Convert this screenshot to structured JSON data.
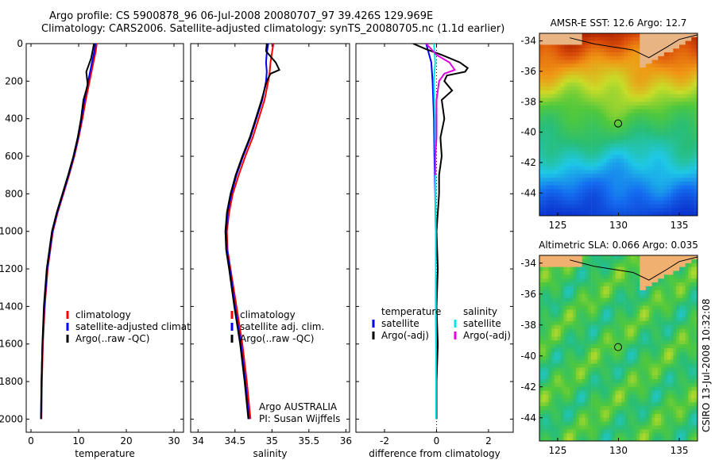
{
  "header": {
    "title_line1": "Argo profile: CS 5900878_96 06-Jul-2008 20080707_97 39.426S 129.969E",
    "title_line2": "Climatology: CARS2006. Satellite-adjusted climatology: synTS_20080705.nc (1.1d earlier)"
  },
  "side_label": "CSIRO 13-Jul-2008 10:32:08",
  "colors": {
    "red": "#ff0000",
    "blue": "#0000ff",
    "black": "#000000",
    "cyan": "#00e5e5",
    "magenta": "#e000e0"
  },
  "chart_data": [
    {
      "type": "line",
      "name": "temperature",
      "xlabel": "temperature",
      "ylabel": "",
      "xlim": [
        -1,
        32
      ],
      "ylim": [
        2070,
        0
      ],
      "xticks": [
        "0",
        "10",
        "20",
        "30"
      ],
      "xtick_values": [
        0,
        10,
        20,
        30
      ],
      "yticks": [
        "0",
        "200",
        "400",
        "600",
        "800",
        "1000",
        "1200",
        "1400",
        "1600",
        "1800",
        "2000"
      ],
      "ytick_values": [
        0,
        200,
        400,
        600,
        800,
        1000,
        1200,
        1400,
        1600,
        1800,
        2000
      ],
      "legend": [
        "climatology",
        "satellite-adjusted climatology",
        "Argo(..raw -QC)"
      ],
      "legend_colors": [
        "red",
        "blue",
        "black"
      ],
      "series": [
        {
          "name": "climatology",
          "color": "red",
          "depth": [
            0,
            40,
            100,
            200,
            300,
            400,
            500,
            600,
            700,
            800,
            900,
            1000,
            1200,
            1400,
            1600,
            1800,
            2000
          ],
          "values": [
            13.8,
            13.6,
            13.1,
            12.3,
            11.5,
            10.8,
            10.0,
            9.1,
            8.0,
            6.8,
            5.6,
            4.6,
            3.5,
            2.9,
            2.5,
            2.3,
            2.2
          ]
        },
        {
          "name": "satellite-adjusted climatology",
          "color": "blue",
          "depth": [
            0,
            40,
            100,
            200,
            300,
            400,
            500,
            600,
            700,
            800,
            900,
            1000,
            1200,
            1400,
            1600,
            1800,
            2000
          ],
          "values": [
            13.5,
            13.3,
            12.8,
            12.0,
            11.2,
            10.6,
            9.9,
            9.0,
            7.9,
            6.7,
            5.5,
            4.5,
            3.4,
            2.8,
            2.4,
            2.2,
            2.1
          ]
        },
        {
          "name": "Argo(..raw -QC)",
          "color": "black",
          "depth": [
            0,
            30,
            80,
            150,
            220,
            300,
            400,
            500,
            600,
            700,
            800,
            900,
            1000,
            1200,
            1400,
            1600,
            1800,
            2000
          ],
          "values": [
            13.2,
            13.0,
            12.6,
            11.6,
            11.9,
            11.0,
            10.5,
            9.8,
            8.9,
            7.8,
            6.6,
            5.4,
            4.4,
            3.3,
            2.7,
            2.4,
            2.2,
            2.1
          ]
        }
      ]
    },
    {
      "type": "line",
      "name": "salinity",
      "xlabel": "salinity",
      "ylabel": "",
      "xlim": [
        33.9,
        36.05
      ],
      "ylim": [
        2070,
        0
      ],
      "xticks": [
        "34",
        "34.5",
        "35",
        "35.5",
        "36"
      ],
      "xtick_values": [
        34,
        34.5,
        35,
        35.5,
        36
      ],
      "legend": [
        "climatology",
        "satellite adj. clim.",
        "Argo(..raw -QC)"
      ],
      "legend_colors": [
        "red",
        "blue",
        "black"
      ],
      "annotation": [
        "Argo AUSTRALIA",
        "PI: Susan Wijffels"
      ],
      "series": [
        {
          "name": "climatology",
          "color": "red",
          "depth": [
            0,
            50,
            100,
            150,
            200,
            300,
            400,
            500,
            600,
            700,
            800,
            900,
            1000,
            1100,
            1200,
            1400,
            1600,
            1800,
            2000
          ],
          "values": [
            35.02,
            35.0,
            34.98,
            34.97,
            34.95,
            34.9,
            34.82,
            34.74,
            34.64,
            34.55,
            34.47,
            34.42,
            34.39,
            34.4,
            34.44,
            34.52,
            34.6,
            34.66,
            34.71
          ]
        },
        {
          "name": "satellite adj. clim.",
          "color": "blue",
          "depth": [
            0,
            50,
            100,
            150,
            200,
            300,
            400,
            500,
            600,
            700,
            800,
            900,
            1000,
            1100,
            1200,
            1400,
            1600,
            1800,
            2000
          ],
          "values": [
            34.95,
            34.93,
            34.92,
            34.93,
            34.92,
            34.87,
            34.79,
            34.71,
            34.61,
            34.52,
            34.45,
            34.4,
            34.38,
            34.39,
            34.43,
            34.5,
            34.58,
            34.64,
            34.69
          ]
        },
        {
          "name": "Argo(..raw -QC)",
          "color": "black",
          "depth": [
            0,
            40,
            100,
            140,
            160,
            200,
            300,
            400,
            500,
            600,
            700,
            800,
            900,
            1000,
            1100,
            1200,
            1400,
            1600,
            1800,
            2000
          ],
          "values": [
            34.93,
            34.92,
            35.05,
            35.1,
            34.98,
            34.93,
            34.86,
            34.78,
            34.7,
            34.6,
            34.51,
            34.44,
            34.39,
            34.37,
            34.38,
            34.42,
            34.49,
            34.57,
            34.63,
            34.68
          ]
        }
      ]
    },
    {
      "type": "line",
      "name": "difference",
      "xlabel": "difference from climatology",
      "ylabel": "",
      "xlim": [
        -3.1,
        2.95
      ],
      "ylim": [
        2070,
        0
      ],
      "xticks": [
        "-2",
        "0",
        "2"
      ],
      "xtick_values": [
        -2,
        0,
        2
      ],
      "legend_headers": [
        "temperature",
        "salinity"
      ],
      "legend": [
        "satellite",
        "Argo(-adj)",
        "satellite",
        "Argo(-adj)"
      ],
      "legend_colors": [
        "blue",
        "black",
        "cyan",
        "magenta"
      ],
      "series": [
        {
          "name": "temperature satellite",
          "color": "blue",
          "depth": [
            0,
            100,
            200,
            400,
            600,
            800,
            1000,
            1200,
            1500,
            2000
          ],
          "values": [
            -0.4,
            -0.2,
            -0.15,
            -0.1,
            -0.08,
            -0.05,
            -0.03,
            -0.03,
            -0.02,
            0.0
          ]
        },
        {
          "name": "temperature Argo(-adj)",
          "color": "black",
          "depth": [
            0,
            30,
            60,
            100,
            130,
            150,
            170,
            200,
            250,
            300,
            400,
            500,
            600,
            700,
            800,
            900,
            1000,
            1200,
            1400,
            1600,
            1800,
            2000
          ],
          "values": [
            -0.9,
            -0.4,
            0.2,
            0.9,
            1.2,
            1.1,
            0.4,
            0.3,
            0.6,
            0.2,
            0.3,
            0.15,
            0.2,
            0.1,
            0.1,
            0.05,
            0.0,
            0.05,
            0.0,
            0.05,
            0.0,
            0.0
          ]
        },
        {
          "name": "salinity satellite",
          "color": "cyan",
          "depth": [
            0,
            100,
            200,
            400,
            600,
            800,
            1000,
            1200,
            1500,
            2000
          ],
          "values": [
            -0.1,
            -0.05,
            -0.1,
            -0.06,
            -0.05,
            -0.04,
            -0.03,
            -0.03,
            -0.02,
            -0.02
          ]
        },
        {
          "name": "salinity Argo(-adj)",
          "color": "magenta",
          "depth": [
            0,
            60,
            100,
            140,
            160,
            200,
            300,
            400,
            500,
            600,
            700
          ],
          "values": [
            -0.4,
            0.0,
            0.5,
            0.7,
            0.3,
            0.1,
            0.0,
            0.0,
            0.0,
            -0.05,
            -0.05
          ]
        }
      ]
    },
    {
      "type": "heatmap",
      "name": "sst-map",
      "title": "AMSR-E SST: 12.6 Argo: 12.7",
      "xlim": [
        123.5,
        136.5
      ],
      "ylim": [
        -45.5,
        -33.5
      ],
      "xticks": [
        "125",
        "130",
        "135"
      ],
      "xtick_values": [
        125,
        130,
        135
      ],
      "yticks": [
        "-34",
        "-36",
        "-38",
        "-40",
        "-42",
        "-44"
      ],
      "ytick_values": [
        -34,
        -36,
        -38,
        -40,
        -42,
        -44
      ],
      "marker": {
        "lon": 129.97,
        "lat": -39.43
      }
    },
    {
      "type": "heatmap",
      "name": "sla-map",
      "title": "Altimetric SLA: 0.066 Argo: 0.035",
      "xlim": [
        123.5,
        136.5
      ],
      "ylim": [
        -45.5,
        -33.5
      ],
      "xticks": [
        "125",
        "130",
        "135"
      ],
      "xtick_values": [
        125,
        130,
        135
      ],
      "yticks": [
        "-34",
        "-36",
        "-38",
        "-40",
        "-42",
        "-44"
      ],
      "ytick_values": [
        -34,
        -36,
        -38,
        -40,
        -42,
        -44
      ],
      "marker": {
        "lon": 129.97,
        "lat": -39.43
      }
    }
  ]
}
